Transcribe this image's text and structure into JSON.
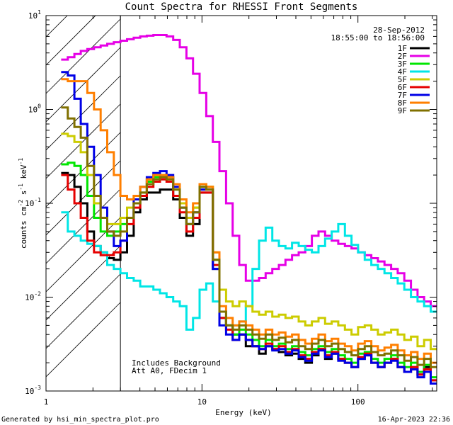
{
  "chart_data": {
    "type": "line",
    "title": "Count Spectra for RHESSI Front Segments",
    "xlabel": "Energy (keV)",
    "ylabel_parts": {
      "base": "counts cm",
      "sup1": "-2",
      "s": " s",
      "sup2": "-1",
      "kev": " keV",
      "sup3": "-1"
    },
    "xscale": "log",
    "yscale": "log",
    "xlim": [
      1,
      320
    ],
    "ylim": [
      0.001,
      10
    ],
    "x_ticks": [
      {
        "value": 1,
        "label": "1"
      },
      {
        "value": 10,
        "label": "10"
      },
      {
        "value": 100,
        "label": "100"
      }
    ],
    "y_ticks": [
      {
        "value": 0.001,
        "base": "10",
        "exp": "-3"
      },
      {
        "value": 0.01,
        "base": "10",
        "exp": "-2"
      },
      {
        "value": 0.1,
        "base": "10",
        "exp": "-1"
      },
      {
        "value": 1,
        "base": "10",
        "exp": "0"
      },
      {
        "value": 10,
        "base": "10",
        "exp": "1"
      }
    ],
    "hatched_region": [
      1,
      3
    ],
    "legend": {
      "placement": "top-right",
      "date": "28-Sep-2012",
      "time_range": "18:55:00 to 18:56:00"
    },
    "annotations": [
      "Includes Background",
      "Att A0, FDecim 1"
    ],
    "edges": [
      1.25,
      1.38,
      1.52,
      1.67,
      1.84,
      2.03,
      2.24,
      2.47,
      2.72,
      3.0,
      3.31,
      3.65,
      4.02,
      4.43,
      4.88,
      5.38,
      5.93,
      6.54,
      7.21,
      7.95,
      8.76,
      9.66,
      10.65,
      11.74,
      12.94,
      14.27,
      15.73,
      17.34,
      19.11,
      21.07,
      23.23,
      25.61,
      28.23,
      31.12,
      34.31,
      37.82,
      41.69,
      45.96,
      50.67,
      55.86,
      61.58,
      67.88,
      74.83,
      82.49,
      90.94,
      100.25,
      110.51,
      121.83,
      134.3,
      148.05,
      163.21,
      179.92,
      198.34,
      218.65,
      241.04,
      265.72,
      292.93,
      322.93
    ],
    "series": [
      {
        "name": "1F",
        "color": "#000000",
        "values": [
          0.21,
          0.2,
          0.15,
          0.1,
          0.05,
          0.035,
          0.03,
          0.026,
          0.025,
          0.03,
          0.045,
          0.08,
          0.11,
          0.13,
          0.13,
          0.14,
          0.14,
          0.11,
          0.07,
          0.045,
          0.06,
          0.13,
          0.13,
          0.02,
          0.006,
          0.005,
          0.004,
          0.004,
          0.003,
          0.003,
          0.0025,
          0.003,
          0.0028,
          0.0026,
          0.0024,
          0.0025,
          0.0022,
          0.002,
          0.0024,
          0.0028,
          0.0022,
          0.0025,
          0.0022,
          0.002,
          0.0018,
          0.0022,
          0.0024,
          0.002,
          0.0018,
          0.002,
          0.0022,
          0.0018,
          0.0016,
          0.0018,
          0.0015,
          0.0018,
          0.0013
        ]
      },
      {
        "name": "2F",
        "color": "#e600e6",
        "values": [
          3.4,
          3.6,
          3.9,
          4.2,
          4.4,
          4.6,
          4.8,
          5.0,
          5.2,
          5.4,
          5.6,
          5.8,
          6.0,
          6.1,
          6.2,
          6.2,
          6.0,
          5.5,
          4.6,
          3.5,
          2.4,
          1.5,
          0.85,
          0.45,
          0.22,
          0.1,
          0.045,
          0.022,
          0.015,
          0.015,
          0.016,
          0.018,
          0.02,
          0.022,
          0.025,
          0.028,
          0.03,
          0.035,
          0.045,
          0.05,
          0.045,
          0.04,
          0.037,
          0.035,
          0.033,
          0.03,
          0.028,
          0.026,
          0.024,
          0.022,
          0.02,
          0.018,
          0.015,
          0.012,
          0.01,
          0.009,
          0.008
        ]
      },
      {
        "name": "3F",
        "color": "#00e600",
        "values": [
          0.26,
          0.27,
          0.25,
          0.2,
          0.12,
          0.07,
          0.05,
          0.045,
          0.05,
          0.06,
          0.07,
          0.1,
          0.13,
          0.17,
          0.19,
          0.2,
          0.19,
          0.14,
          0.09,
          0.06,
          0.09,
          0.15,
          0.15,
          0.025,
          0.006,
          0.005,
          0.004,
          0.0045,
          0.004,
          0.0035,
          0.003,
          0.0035,
          0.003,
          0.0032,
          0.0028,
          0.003,
          0.0026,
          0.0024,
          0.0028,
          0.003,
          0.0026,
          0.0028,
          0.0024,
          0.0022,
          0.002,
          0.0025,
          0.0026,
          0.0022,
          0.002,
          0.0022,
          0.0024,
          0.002,
          0.0018,
          0.002,
          0.0016,
          0.0019,
          0.0014
        ]
      },
      {
        "name": "4F",
        "color": "#00e6e6",
        "values": [
          0.08,
          0.05,
          0.045,
          0.04,
          0.037,
          0.035,
          0.03,
          0.022,
          0.02,
          0.018,
          0.016,
          0.015,
          0.013,
          0.013,
          0.012,
          0.011,
          0.01,
          0.009,
          0.008,
          0.0045,
          0.006,
          0.012,
          0.014,
          0.009,
          0.006,
          0.005,
          0.005,
          0.0055,
          0.008,
          0.02,
          0.04,
          0.055,
          0.04,
          0.035,
          0.033,
          0.038,
          0.035,
          0.032,
          0.03,
          0.035,
          0.042,
          0.05,
          0.06,
          0.045,
          0.036,
          0.03,
          0.025,
          0.022,
          0.02,
          0.018,
          0.016,
          0.014,
          0.012,
          0.01,
          0.009,
          0.008,
          0.007
        ]
      },
      {
        "name": "5F",
        "color": "#cccc00",
        "values": [
          0.55,
          0.52,
          0.45,
          0.35,
          0.2,
          0.1,
          0.07,
          0.06,
          0.06,
          0.07,
          0.09,
          0.12,
          0.15,
          0.18,
          0.2,
          0.2,
          0.19,
          0.15,
          0.1,
          0.07,
          0.09,
          0.16,
          0.15,
          0.03,
          0.012,
          0.009,
          0.008,
          0.009,
          0.008,
          0.007,
          0.0065,
          0.007,
          0.0062,
          0.0065,
          0.006,
          0.0062,
          0.0055,
          0.005,
          0.0055,
          0.006,
          0.0052,
          0.0055,
          0.005,
          0.0045,
          0.004,
          0.0048,
          0.005,
          0.0045,
          0.004,
          0.0042,
          0.0045,
          0.004,
          0.0035,
          0.0038,
          0.003,
          0.0035,
          0.0028
        ]
      },
      {
        "name": "6F",
        "color": "#e60000",
        "values": [
          0.2,
          0.14,
          0.1,
          0.07,
          0.04,
          0.03,
          0.028,
          0.028,
          0.03,
          0.04,
          0.06,
          0.09,
          0.12,
          0.15,
          0.17,
          0.18,
          0.17,
          0.12,
          0.08,
          0.05,
          0.07,
          0.13,
          0.13,
          0.022,
          0.006,
          0.0045,
          0.0035,
          0.004,
          0.0035,
          0.003,
          0.0028,
          0.0032,
          0.0028,
          0.003,
          0.0026,
          0.0028,
          0.0024,
          0.0022,
          0.0026,
          0.0028,
          0.0024,
          0.0026,
          0.0022,
          0.002,
          0.0018,
          0.0023,
          0.0025,
          0.002,
          0.0018,
          0.002,
          0.0022,
          0.0018,
          0.0016,
          0.0018,
          0.0015,
          0.0017,
          0.0013
        ]
      },
      {
        "name": "7F",
        "color": "#0000e6",
        "values": [
          2.5,
          2.3,
          1.3,
          0.7,
          0.4,
          0.2,
          0.09,
          0.05,
          0.035,
          0.04,
          0.07,
          0.11,
          0.15,
          0.19,
          0.21,
          0.22,
          0.2,
          0.15,
          0.09,
          0.06,
          0.08,
          0.14,
          0.14,
          0.02,
          0.005,
          0.004,
          0.0035,
          0.004,
          0.0035,
          0.003,
          0.0028,
          0.003,
          0.0027,
          0.0028,
          0.0025,
          0.0027,
          0.0023,
          0.0021,
          0.0025,
          0.0027,
          0.0023,
          0.0025,
          0.0021,
          0.002,
          0.0018,
          0.0022,
          0.0024,
          0.002,
          0.0018,
          0.002,
          0.0021,
          0.0018,
          0.0016,
          0.0017,
          0.0014,
          0.0016,
          0.0012
        ]
      },
      {
        "name": "8F",
        "color": "#ff7f00",
        "values": [
          2.1,
          2.0,
          2.0,
          2.0,
          1.5,
          1.0,
          0.6,
          0.35,
          0.2,
          0.12,
          0.11,
          0.12,
          0.15,
          0.18,
          0.2,
          0.2,
          0.19,
          0.16,
          0.11,
          0.08,
          0.1,
          0.16,
          0.15,
          0.03,
          0.008,
          0.006,
          0.005,
          0.0055,
          0.005,
          0.0045,
          0.004,
          0.0045,
          0.004,
          0.0042,
          0.0038,
          0.004,
          0.0035,
          0.0032,
          0.0036,
          0.004,
          0.0034,
          0.0036,
          0.0032,
          0.003,
          0.0027,
          0.0032,
          0.0034,
          0.003,
          0.0027,
          0.0029,
          0.0031,
          0.0027,
          0.0024,
          0.0026,
          0.0022,
          0.0025,
          0.002
        ]
      },
      {
        "name": "9F",
        "color": "#807000",
        "values": [
          1.05,
          0.8,
          0.65,
          0.5,
          0.25,
          0.12,
          0.07,
          0.05,
          0.045,
          0.05,
          0.07,
          0.1,
          0.13,
          0.16,
          0.18,
          0.19,
          0.18,
          0.14,
          0.09,
          0.06,
          0.08,
          0.15,
          0.14,
          0.025,
          0.007,
          0.005,
          0.0045,
          0.005,
          0.0045,
          0.004,
          0.0036,
          0.004,
          0.0035,
          0.0037,
          0.0033,
          0.0035,
          0.003,
          0.0028,
          0.0032,
          0.0035,
          0.003,
          0.0032,
          0.0028,
          0.0026,
          0.0024,
          0.0028,
          0.003,
          0.0026,
          0.0024,
          0.0025,
          0.0027,
          0.0024,
          0.0021,
          0.0023,
          0.0019,
          0.0022,
          0.0018
        ]
      }
    ]
  },
  "footer": {
    "left": "Generated by hsi_min_spectra_plot.pro",
    "right": "16-Apr-2023 22:36"
  }
}
